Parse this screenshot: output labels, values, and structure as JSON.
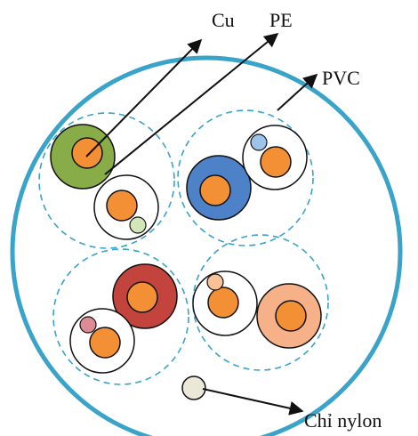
{
  "labels": {
    "cu": "Cu",
    "pe": "PE",
    "pvc": "PVC",
    "nylon": "Chỉ nylon"
  },
  "colors": {
    "outer_sheath": "#3aa3c9",
    "twisted_pair_boundary": "#3aa3c9",
    "copper_conductor": "#f39035",
    "green_insulation": "#88ad48",
    "blue_insulation": "#4d82c8",
    "brown_insulation": "#c2443c",
    "orange_insulation": "#f6b189",
    "white_insulation": "#ffffff",
    "light_green_marker": "#d2e6b9",
    "light_blue_marker": "#9ec3e8",
    "light_orange_marker": "#f9c196",
    "pink_marker": "#dd8b94",
    "nylon_filler": "#ece8d8",
    "leader_line": "#111111"
  },
  "components": [
    "outer-pvc-sheath",
    "twisted-pair-green",
    "twisted-pair-blue",
    "twisted-pair-brown",
    "twisted-pair-orange",
    "nylon-ripcord"
  ]
}
